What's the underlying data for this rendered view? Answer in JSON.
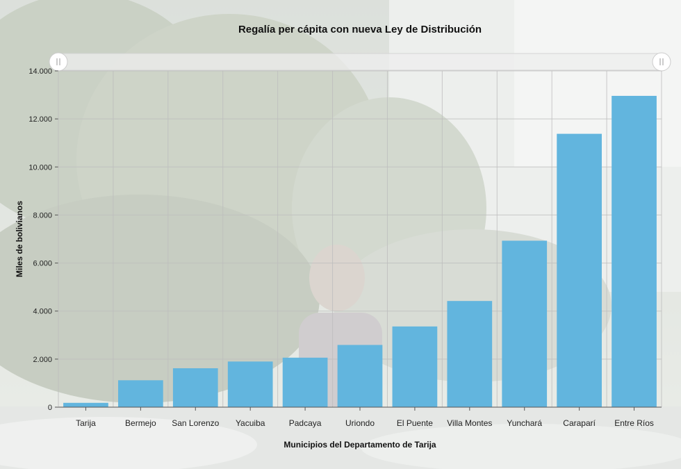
{
  "chart_data": {
    "type": "bar",
    "title": "Regalía per cápita con nueva Ley de Distribución",
    "xlabel": "Municipios del Departamento de Tarija",
    "ylabel": "Miles de bolivianos",
    "categories": [
      "Tarija",
      "Bermejo",
      "San Lorenzo",
      "Yacuiba",
      "Padcaya",
      "Uriondo",
      "El Puente",
      "Villa Montes",
      "Yunchará",
      "Caraparí",
      "Entre Ríos"
    ],
    "values": [
      180,
      1120,
      1620,
      1900,
      2060,
      2590,
      3360,
      4420,
      6930,
      11380,
      12960
    ],
    "ylim": [
      0,
      14000
    ],
    "yticks": [
      0,
      2000,
      4000,
      6000,
      8000,
      10000,
      12000,
      14000
    ],
    "ytick_labels": [
      "0",
      "2.000",
      "4.000",
      "6.000",
      "8.000",
      "10.000",
      "12.000",
      "14.000"
    ],
    "grid": true,
    "bar_color": "#62b5de",
    "scrollbar": {
      "left_handle_icon": "grip-icon",
      "right_handle_icon": "grip-icon"
    }
  }
}
